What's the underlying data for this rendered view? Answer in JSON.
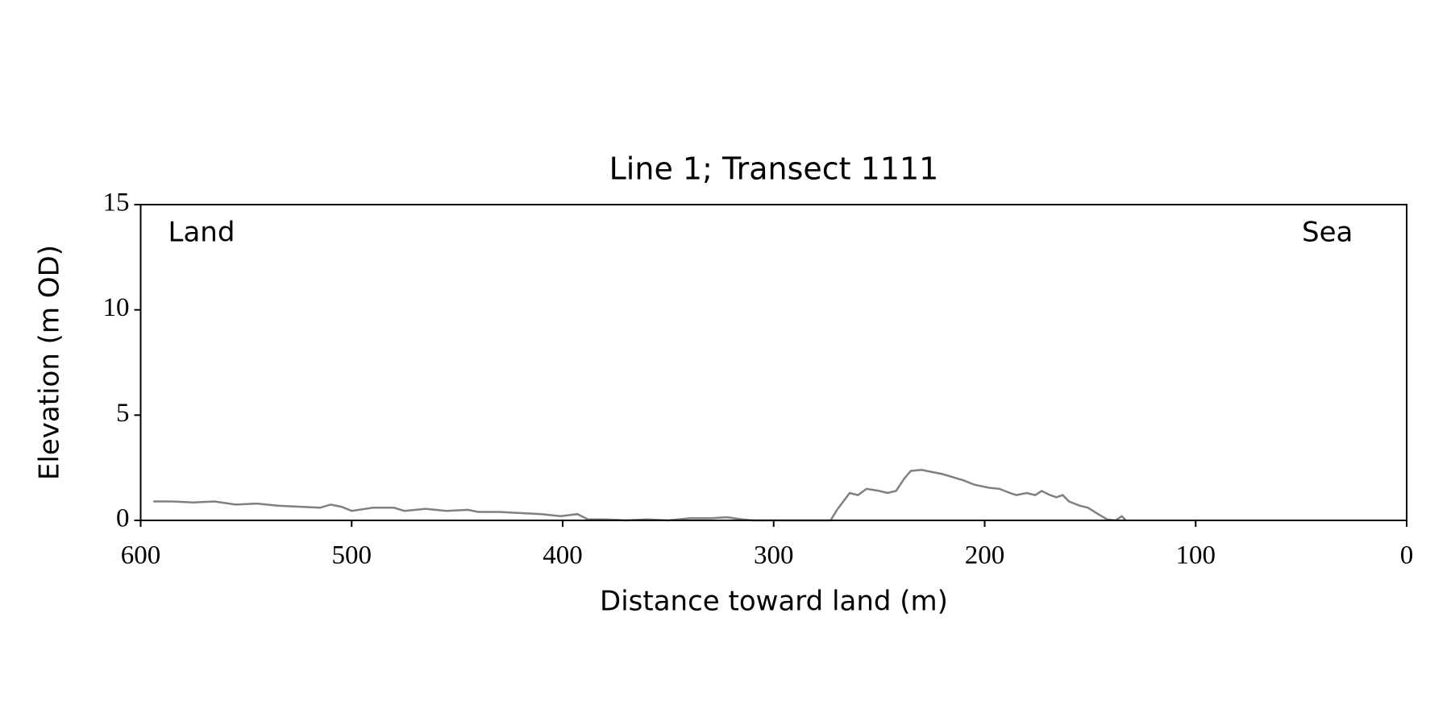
{
  "chart_data": {
    "type": "line",
    "title": "Line 1; Transect 1111",
    "x_label": "Distance toward land (m)",
    "y_label": "Elevation (m OD)",
    "annotations": [
      "Land",
      "Sea"
    ],
    "color": "#808080",
    "x": [
      594,
      585,
      575,
      565,
      555,
      545,
      535,
      525,
      515,
      510,
      505,
      500,
      490,
      480,
      475,
      465,
      455,
      445,
      440,
      430,
      420,
      410,
      401,
      393,
      388,
      380,
      370,
      360,
      350,
      340,
      330,
      322,
      315,
      310,
      290,
      273,
      270,
      264,
      260,
      256,
      250,
      246,
      242,
      238,
      235,
      230,
      220,
      210,
      205,
      198,
      193,
      188,
      185,
      180,
      176,
      173,
      169,
      166,
      163,
      160,
      155,
      151,
      147,
      142,
      138,
      135,
      133
    ],
    "values": [
      0.9,
      0.9,
      0.85,
      0.9,
      0.75,
      0.8,
      0.7,
      0.65,
      0.6,
      0.75,
      0.65,
      0.45,
      0.6,
      0.6,
      0.45,
      0.55,
      0.45,
      0.5,
      0.4,
      0.4,
      0.35,
      0.3,
      0.2,
      0.3,
      0.05,
      0.05,
      0,
      0.05,
      0,
      0.1,
      0.1,
      0.15,
      0.05,
      0,
      0,
      0,
      0.5,
      1.3,
      1.2,
      1.5,
      1.4,
      1.3,
      1.4,
      2.0,
      2.35,
      2.4,
      2.2,
      1.9,
      1.7,
      1.55,
      1.5,
      1.3,
      1.2,
      1.3,
      1.2,
      1.4,
      1.2,
      1.1,
      1.2,
      0.9,
      0.7,
      0.6,
      0.35,
      0.05,
      0,
      0.2,
      0
    ],
    "xlim": [
      600,
      0
    ],
    "ylim": [
      0,
      15
    ],
    "xticks": [
      600,
      500,
      400,
      300,
      200,
      100,
      0
    ],
    "yticks": [
      0,
      5,
      10,
      15
    ]
  }
}
